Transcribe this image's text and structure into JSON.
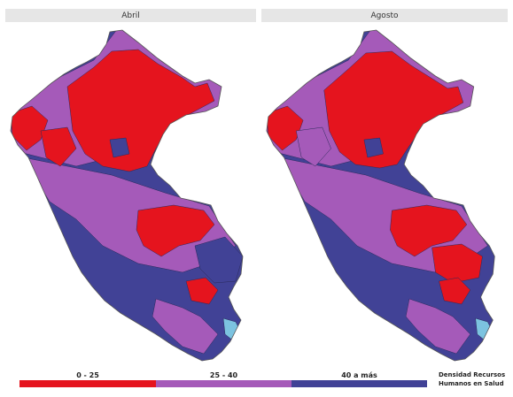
{
  "panels": [
    {
      "title": "Abril"
    },
    {
      "title": "Agosto"
    }
  ],
  "legend": {
    "title_line1": "Densidad Recursos",
    "title_line2": "Humanos en Salud",
    "categories": [
      {
        "label": "0 - 25",
        "color": "#e5141e"
      },
      {
        "label": "25 - 40",
        "color": "#a55ab9"
      },
      {
        "label": "40 a más",
        "color": "#414296"
      }
    ]
  },
  "lake_color": "#7cc3e0",
  "land_outline": "#555555"
}
